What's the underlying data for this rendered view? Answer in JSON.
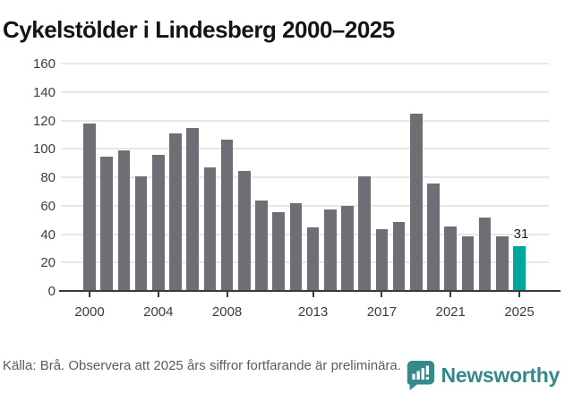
{
  "title": "Cykelstölder i Lindesberg 2000–2025",
  "chart_data": {
    "type": "bar",
    "title": "Cykelstölder i Lindesberg 2000–2025",
    "categories": [
      2000,
      2001,
      2002,
      2003,
      2004,
      2005,
      2006,
      2007,
      2008,
      2009,
      2010,
      2011,
      2012,
      2013,
      2014,
      2015,
      2016,
      2017,
      2018,
      2019,
      2020,
      2021,
      2022,
      2023,
      2024,
      2025
    ],
    "values": [
      117,
      94,
      98,
      80,
      95,
      110,
      114,
      86,
      106,
      84,
      63,
      55,
      61,
      44,
      57,
      59,
      80,
      43,
      48,
      124,
      75,
      45,
      38,
      51,
      38,
      31
    ],
    "highlight_category": 2025,
    "highlight_value_label": "31",
    "xlabel": "",
    "ylabel": "",
    "ylim": [
      0,
      160
    ],
    "y_ticks": [
      0,
      20,
      40,
      60,
      80,
      100,
      120,
      140,
      160
    ],
    "x_tick_labels": [
      "2000",
      "2004",
      "2008",
      "2013",
      "2017",
      "2021",
      "2025"
    ],
    "grid": "horizontal",
    "legend": "none",
    "colors": {
      "bar": "#6e6e74",
      "highlight": "#00a79b",
      "grid": "#e7e7e7",
      "axis": "#3a3a3a"
    }
  },
  "footer": {
    "source_text": "Källa: Brå. Observera att 2025 års siffror fortfarande är preliminära.",
    "brand": "Newsworthy",
    "brand_color": "#35898c"
  },
  "icons": {
    "logo": "newsworthy-chart-bubble-icon"
  }
}
